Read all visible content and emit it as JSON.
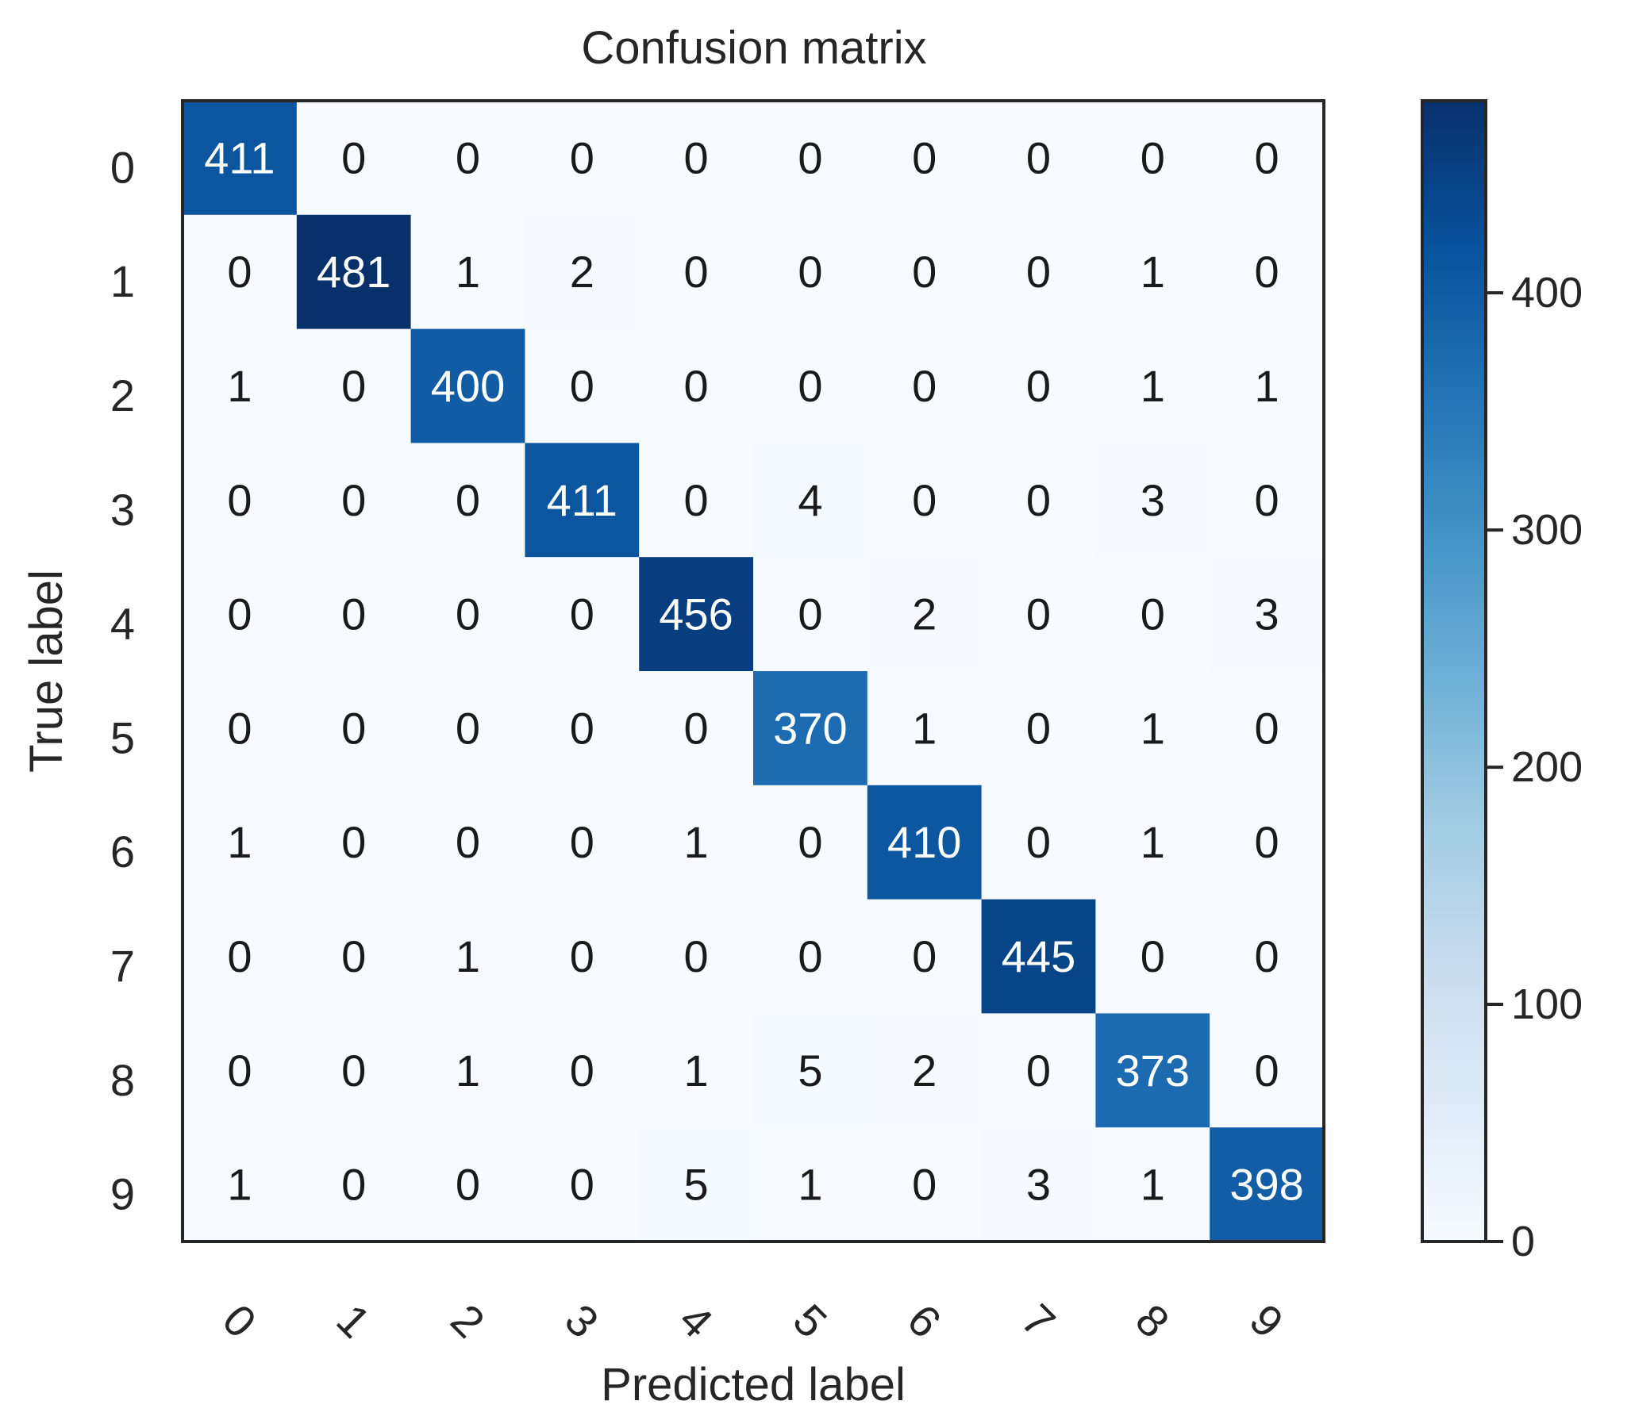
{
  "chart_data": {
    "type": "heatmap",
    "title": "Confusion matrix",
    "xlabel": "Predicted label",
    "ylabel": "True label",
    "x_categories": [
      "0",
      "1",
      "2",
      "3",
      "4",
      "5",
      "6",
      "7",
      "8",
      "9"
    ],
    "y_categories": [
      "0",
      "1",
      "2",
      "3",
      "4",
      "5",
      "6",
      "7",
      "8",
      "9"
    ],
    "matrix": [
      [
        411,
        0,
        0,
        0,
        0,
        0,
        0,
        0,
        0,
        0
      ],
      [
        0,
        481,
        1,
        2,
        0,
        0,
        0,
        0,
        1,
        0
      ],
      [
        1,
        0,
        400,
        0,
        0,
        0,
        0,
        0,
        1,
        1
      ],
      [
        0,
        0,
        0,
        411,
        0,
        4,
        0,
        0,
        3,
        0
      ],
      [
        0,
        0,
        0,
        0,
        456,
        0,
        2,
        0,
        0,
        3
      ],
      [
        0,
        0,
        0,
        0,
        0,
        370,
        1,
        0,
        1,
        0
      ],
      [
        1,
        0,
        0,
        0,
        1,
        0,
        410,
        0,
        1,
        0
      ],
      [
        0,
        0,
        1,
        0,
        0,
        0,
        0,
        445,
        0,
        0
      ],
      [
        0,
        0,
        1,
        0,
        1,
        5,
        2,
        0,
        373,
        0
      ],
      [
        1,
        0,
        0,
        0,
        5,
        1,
        0,
        3,
        1,
        398
      ]
    ],
    "colorbar": {
      "colormap": "Blues",
      "min": 0,
      "max": 481,
      "ticks": [
        0,
        100,
        200,
        300,
        400
      ]
    },
    "x_tick_rotation_deg": 45,
    "grid": false
  }
}
